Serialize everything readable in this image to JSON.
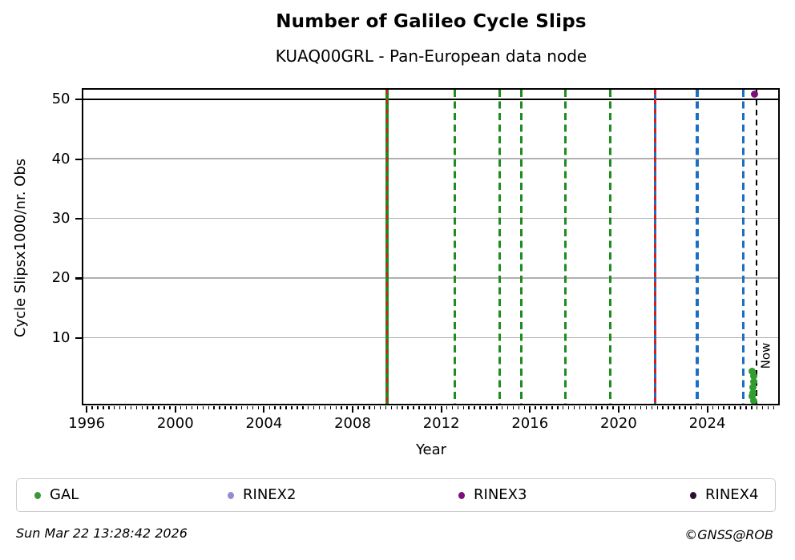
{
  "title": "Number of Galileo Cycle Slips",
  "subtitle": "KUAQ00GRL - Pan-European data node",
  "footer": {
    "timestamp": "Sun Mar 22 13:28:42 2026",
    "credit": "©GNSS@ROB"
  },
  "legend": {
    "items": [
      {
        "label": "GAL",
        "color": "#3a963a"
      },
      {
        "label": "RINEX2",
        "color": "#8f8fce"
      },
      {
        "label": "RINEX3",
        "color": "#7a117a"
      },
      {
        "label": "RINEX4",
        "color": "#2d0f33"
      }
    ]
  },
  "chart_data": {
    "type": "scatter",
    "title": "Number of Galileo Cycle Slips",
    "subtitle": "KUAQ00GRL - Pan-European data node",
    "xlabel": "Year",
    "ylabel": "Cycle Slipsx1000/nr. Obs",
    "xlim": [
      1995.85,
      2027.2
    ],
    "ylim": [
      -1.05,
      51.65
    ],
    "x_major_ticks": [
      1996,
      2000,
      2004,
      2008,
      2012,
      2016,
      2020,
      2024
    ],
    "x_minor_step_years": 0.25,
    "y_major_ticks": [
      10,
      20,
      30,
      40,
      50
    ],
    "grid": {
      "horizontal_values": [
        10,
        20,
        30,
        40
      ],
      "color": "#b0b0b0"
    },
    "reference_hline": {
      "y": 50,
      "color": "#000000"
    },
    "event_vlines": [
      {
        "x": 2009.57,
        "color": "#1e8c1e",
        "style": "solid",
        "width": 3.2,
        "overlay_color": "#e01818"
      },
      {
        "x": 2012.63,
        "color": "#1e8c1e",
        "style": "dashed",
        "width": 3.8
      },
      {
        "x": 2014.66,
        "color": "#1e8c1e",
        "style": "dashed",
        "width": 3.2
      },
      {
        "x": 2015.62,
        "color": "#1e8c1e",
        "style": "dashed",
        "width": 3.2
      },
      {
        "x": 2017.63,
        "color": "#1e8c1e",
        "style": "dashed",
        "width": 3.2
      },
      {
        "x": 2019.64,
        "color": "#1e8c1e",
        "style": "dashed",
        "width": 3.2
      },
      {
        "x": 2021.66,
        "color": "#1b6fc0",
        "style": "solid",
        "width": 3.5,
        "overlay_color": "#e01818"
      },
      {
        "x": 2023.57,
        "color": "#1b6fc0",
        "style": "dashed",
        "width": 4.6
      },
      {
        "x": 2025.66,
        "color": "#1b6fc0",
        "style": "dashed",
        "width": 3.0
      },
      {
        "x": 2026.24,
        "color": "#000000",
        "style": "dashed",
        "width": 2.5,
        "label": "Now"
      }
    ],
    "now_label": "Now",
    "series": [
      {
        "name": "GAL",
        "color": "#2f9e2f",
        "points": [
          [
            2026.05,
            4.3
          ],
          [
            2026.1,
            3.5
          ],
          [
            2026.1,
            2.6
          ],
          [
            2026.09,
            1.6
          ],
          [
            2026.08,
            0.7
          ],
          [
            2026.04,
            0.1
          ],
          [
            2026.1,
            -0.6
          ]
        ]
      },
      {
        "name": "RINEX2",
        "color": "#8f8fce",
        "points": []
      },
      {
        "name": "RINEX3",
        "color": "#7a117a",
        "points": [
          [
            2026.16,
            50.9
          ]
        ]
      },
      {
        "name": "RINEX4",
        "color": "#2d0f33",
        "points": []
      }
    ]
  }
}
